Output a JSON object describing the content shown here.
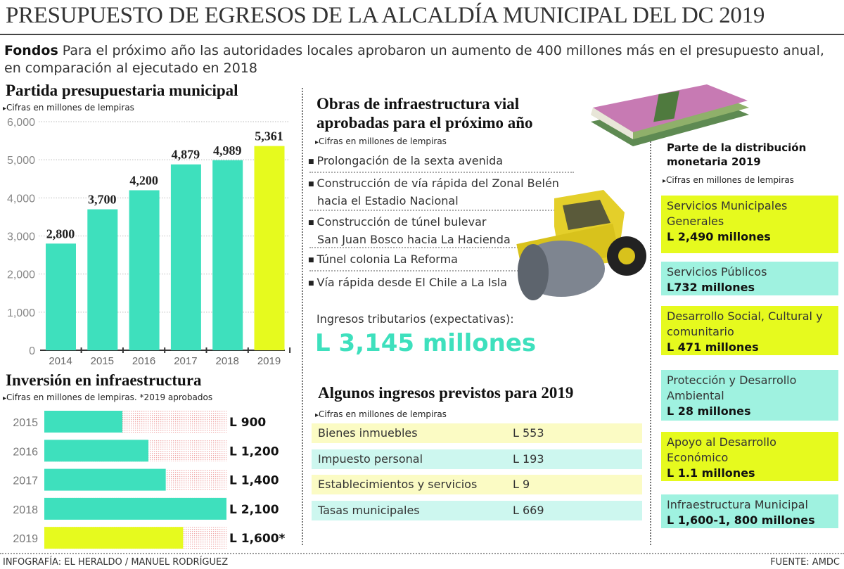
{
  "title": "PRESUPUESTO DE EGRESOS DE LA ALCALDÍA MUNICIPAL DEL DC 2019",
  "intro": {
    "lead": "Fondos",
    "text": " Para el próximo año las autoridades locales aprobaron un aumento de 400 millones más en el presupuesto anual, en comparación al ejecutado en 2018"
  },
  "colors": {
    "teal": "#3ee0bd",
    "yellow": "#e6fa1e",
    "light_yellow": "#fbfbc4",
    "light_teal": "#cdf7ef"
  },
  "chart_data": [
    {
      "type": "bar",
      "title": "Partida presupuestaria municipal",
      "subtitle": "Cifras en millones de lempiras",
      "categories": [
        "2014",
        "2015",
        "2016",
        "2017",
        "2018",
        "2019"
      ],
      "values": [
        2800,
        3700,
        4200,
        4879,
        4989,
        5361
      ],
      "value_labels": [
        "2,800",
        "3,700",
        "4,200",
        "4,879",
        "4,989",
        "5,361"
      ],
      "yticks": [
        "0",
        "1,000",
        "2,000",
        "3,000",
        "4,000",
        "5,000",
        "6,000"
      ],
      "ylim": [
        0,
        6000
      ],
      "grid": true,
      "highlight": "2019"
    },
    {
      "type": "bar",
      "orientation": "horizontal",
      "title": "Inversión en infraestructura",
      "subtitle": "Cifras en millones de lempiras. *2019 aprobados",
      "categories": [
        "2015",
        "2016",
        "2017",
        "2018",
        "2019"
      ],
      "values": [
        900,
        1200,
        1400,
        2100,
        1600
      ],
      "value_labels": [
        "L 900",
        "L 1,200",
        "L 1,400",
        "L 2,100",
        "L 1,600*"
      ],
      "xlim": [
        0,
        2100
      ],
      "highlight": "2019"
    }
  ],
  "obras": {
    "title1": "Obras  de infraestructura vial",
    "title2": "aprobadas para el próximo año",
    "subtitle": "Cifras en millones de lempiras",
    "items": [
      [
        "Prolongación de la sexta avenida"
      ],
      [
        "Construcción de vía rápida del Zonal Belén",
        "hacia el  Estadio Nacional"
      ],
      [
        "Construcción de túnel bulevar",
        "San Juan Bosco hacia La Hacienda"
      ],
      [
        "Túnel colonia La Reforma"
      ],
      [
        "Vía rápida desde El Chile a La Isla"
      ]
    ]
  },
  "tributarios": {
    "label": "Ingresos tributarios (expectativas):",
    "value": "L 3,145 millones"
  },
  "ingresos": {
    "title": "Algunos ingresos  previstos para 2019",
    "subtitle": "Cifras en millones de lempiras",
    "rows": [
      {
        "name": "Bienes inmuebles",
        "value": "L 553"
      },
      {
        "name": "Impuesto personal",
        "value": "L 193"
      },
      {
        "name": "Establecimientos y servicios",
        "value": "L 9"
      },
      {
        "name": "Tasas municipales",
        "value": "L 669"
      }
    ]
  },
  "distribucion": {
    "title1": "Parte de la distribución",
    "title2": "monetaria 2019",
    "subtitle": "Cifras en millones de lempiras",
    "items": [
      {
        "name": "Servicios Municipales Generales",
        "value": "L 2,490 millones"
      },
      {
        "name": "Servicios Públicos",
        "value": "L732 millones"
      },
      {
        "name": "Desarrollo Social, Cultural y comunitario",
        "value": "L 471 millones"
      },
      {
        "name": "Protección y Desarrollo Ambiental",
        "value": "L 28 millones"
      },
      {
        "name": "Apoyo al Desarrollo Económico",
        "value": "L 1.1 millones"
      },
      {
        "name": "Infraestructura Municipal",
        "value": "L 1,600-1, 800 millones"
      }
    ]
  },
  "credit": "INFOGRAFÍA: EL HERALDO / MANUEL RODRÍGUEZ",
  "source": "FUENTE: AMDC"
}
